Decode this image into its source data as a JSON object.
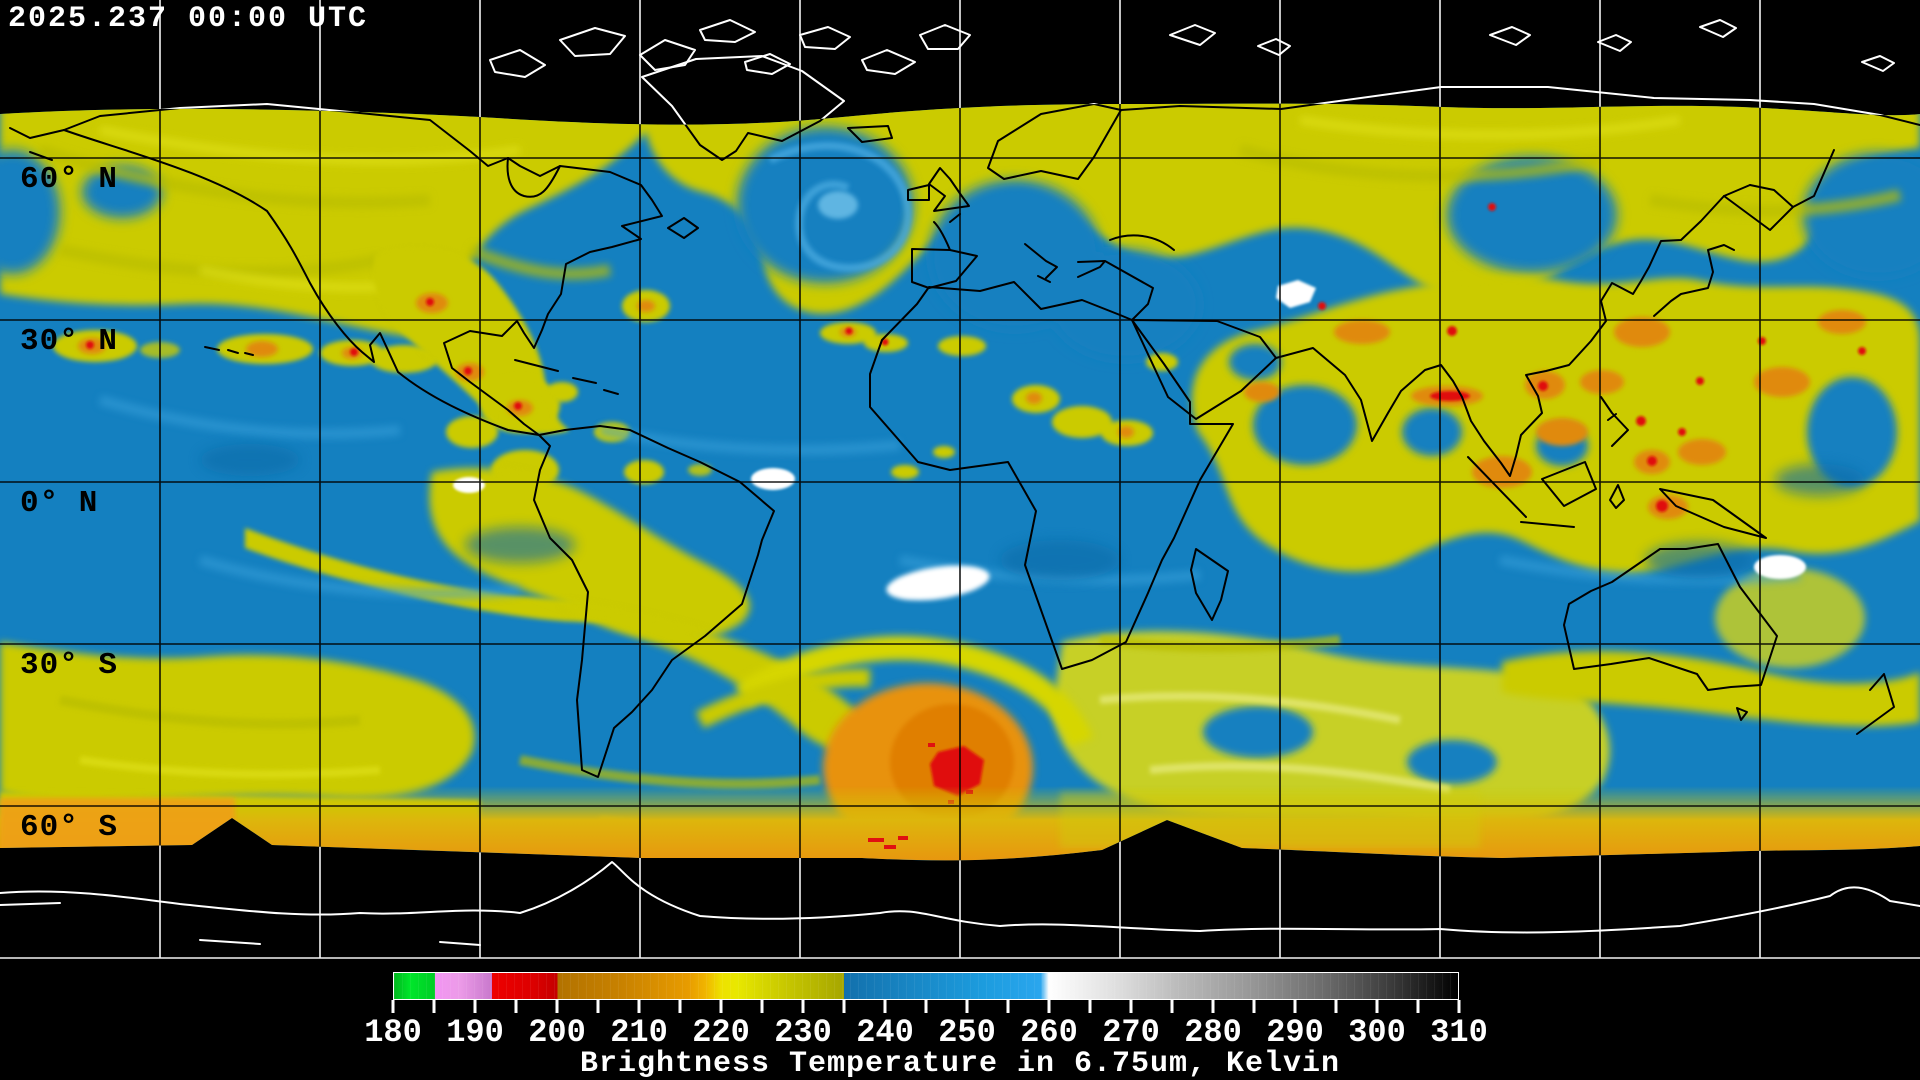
{
  "header": {
    "timestamp": "2025.237 00:00 UTC"
  },
  "map": {
    "latitude_labels": [
      "60° N",
      "30° N",
      "0° N",
      "30° S",
      "60° S"
    ],
    "colors": {
      "background": "#000000",
      "ocean_moist_blue": "#1480C0",
      "cloud_yellow": "#CBCB00",
      "cloud_olive": "#B9BD00",
      "convective_orange": "#E08A10",
      "convective_red": "#E01010",
      "warm_white": "#FFFFFF",
      "polar_orange": "#EFA018",
      "coast_over_data": "#000000",
      "coast_over_space": "#FFFFFF"
    }
  },
  "colorbar": {
    "title": "Brightness Temperature in 6.75um, Kelvin",
    "units": "Kelvin",
    "min": 180,
    "max": 310,
    "tick_labels": [
      "180",
      "190",
      "200",
      "210",
      "220",
      "230",
      "240",
      "250",
      "260",
      "270",
      "280",
      "290",
      "300",
      "310"
    ],
    "stops": [
      {
        "value": 180,
        "color": "#00B81E"
      },
      {
        "value": 182,
        "color": "#00E62A"
      },
      {
        "value": 185,
        "color": "#00CC26"
      },
      {
        "value": 185,
        "color": "#F295F2"
      },
      {
        "value": 188,
        "color": "#EC9BE8"
      },
      {
        "value": 192,
        "color": "#C878CC"
      },
      {
        "value": 192,
        "color": "#EE0000"
      },
      {
        "value": 197,
        "color": "#DC0000"
      },
      {
        "value": 200,
        "color": "#C40000"
      },
      {
        "value": 200,
        "color": "#B27200"
      },
      {
        "value": 208,
        "color": "#C98200"
      },
      {
        "value": 216,
        "color": "#E89C00"
      },
      {
        "value": 218,
        "color": "#F0B400"
      },
      {
        "value": 220,
        "color": "#EEE200"
      },
      {
        "value": 222,
        "color": "#E8E800"
      },
      {
        "value": 225,
        "color": "#D6D600"
      },
      {
        "value": 229,
        "color": "#C2C200"
      },
      {
        "value": 235,
        "color": "#A6A600"
      },
      {
        "value": 235,
        "color": "#1270AC"
      },
      {
        "value": 243,
        "color": "#1886C4"
      },
      {
        "value": 252,
        "color": "#1C9CDE"
      },
      {
        "value": 259,
        "color": "#2AA6EE"
      },
      {
        "value": 260,
        "color": "#FFFFFF"
      },
      {
        "value": 268,
        "color": "#E0E0E0"
      },
      {
        "value": 276,
        "color": "#BABABA"
      },
      {
        "value": 285,
        "color": "#969696"
      },
      {
        "value": 294,
        "color": "#6A6A6A"
      },
      {
        "value": 302,
        "color": "#3A3A3A"
      },
      {
        "value": 310,
        "color": "#000000"
      }
    ]
  }
}
